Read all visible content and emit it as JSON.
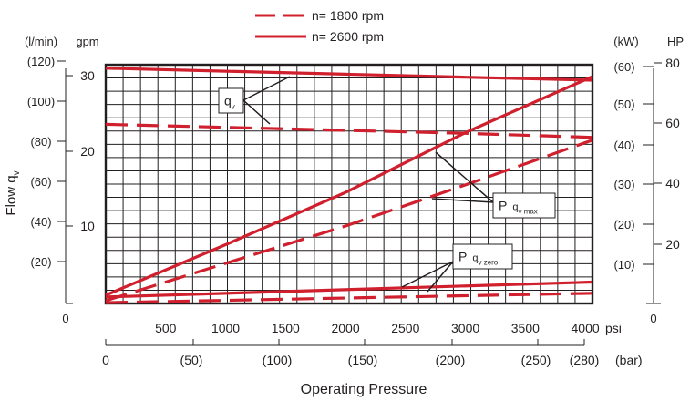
{
  "chart_data": {
    "type": "line",
    "legend": [
      {
        "label": "n= 1800 rpm",
        "style": "dashed",
        "color": "#d0202e"
      },
      {
        "label": "n= 2600 rpm",
        "style": "solid",
        "color": "#d0202e"
      }
    ],
    "xlabel": "Operating Pressure",
    "x_psi": {
      "unit_label": "psi",
      "ticks": [
        "500",
        "1000",
        "1500",
        "2000",
        "2500",
        "3000",
        "3500",
        "4000"
      ],
      "xlim": [
        0,
        4060
      ]
    },
    "x_bar": {
      "unit_label": "(bar)",
      "ticks": [
        "0",
        "(50)",
        "(100)",
        "(150)",
        "(200)",
        "(250)",
        "(280)"
      ]
    },
    "left_axes": {
      "ylabel": "Flow q",
      "ylabel_sub": "v",
      "lmin_header": "(l/min)",
      "gpm_header": "gpm",
      "lmin_ticks": [
        "(120)",
        "(100)",
        "(80)",
        "(60)",
        "(40)",
        "(20)"
      ],
      "gpm_ticks": [
        "30",
        "20",
        "10"
      ],
      "zero": "0"
    },
    "right_axes": {
      "kw_header": "(kW)",
      "hp_header": "HP",
      "kw_ticks": [
        "(60)",
        "(50)",
        "(40)",
        "(30)",
        "(20)",
        "(10)"
      ],
      "hp_ticks": [
        "80",
        "60",
        "40",
        "20"
      ],
      "zero": "0"
    },
    "callouts": {
      "qv": {
        "main": "q",
        "sub": "v"
      },
      "p_max": {
        "main": "P",
        "sub": "q",
        "subsub": "v max"
      },
      "p_zero": {
        "main": "P",
        "sub": "q",
        "subsub": "v zero"
      }
    },
    "y_units": "l/min (flow), kW (power)",
    "series": [
      {
        "name": "n= 2600 rpm",
        "kind": "flow q_v",
        "unit": "l/min",
        "style": "solid",
        "points": [
          [
            0,
            116
          ],
          [
            1000,
            114.5
          ],
          [
            2000,
            113
          ],
          [
            3000,
            111.5
          ],
          [
            4060,
            110
          ]
        ]
      },
      {
        "name": "n= 1800 rpm",
        "kind": "flow q_v",
        "unit": "l/min",
        "style": "dashed",
        "points": [
          [
            0,
            88
          ],
          [
            1000,
            86.5
          ],
          [
            2000,
            85
          ],
          [
            3000,
            83.5
          ],
          [
            4060,
            81.5
          ]
        ]
      },
      {
        "name": "n= 2600 rpm",
        "kind": "power P q_v max",
        "unit": "kW",
        "style": "solid",
        "points": [
          [
            0,
            1.5
          ],
          [
            1000,
            15
          ],
          [
            2000,
            29
          ],
          [
            3000,
            45
          ],
          [
            4060,
            60
          ]
        ]
      },
      {
        "name": "n= 1800 rpm",
        "kind": "power P q_v max",
        "unit": "kW",
        "style": "dashed",
        "points": [
          [
            0,
            0
          ],
          [
            1000,
            10
          ],
          [
            2000,
            20
          ],
          [
            3000,
            31
          ],
          [
            4060,
            43
          ]
        ]
      },
      {
        "name": "n= 2600 rpm",
        "kind": "power P q_v zero",
        "unit": "kW",
        "style": "solid",
        "points": [
          [
            0,
            1
          ],
          [
            4060,
            5
          ]
        ]
      },
      {
        "name": "n= 1800 rpm",
        "kind": "power P q_v zero",
        "unit": "kW",
        "style": "dashed",
        "points": [
          [
            0,
            -0.5
          ],
          [
            4060,
            2
          ]
        ]
      }
    ]
  }
}
